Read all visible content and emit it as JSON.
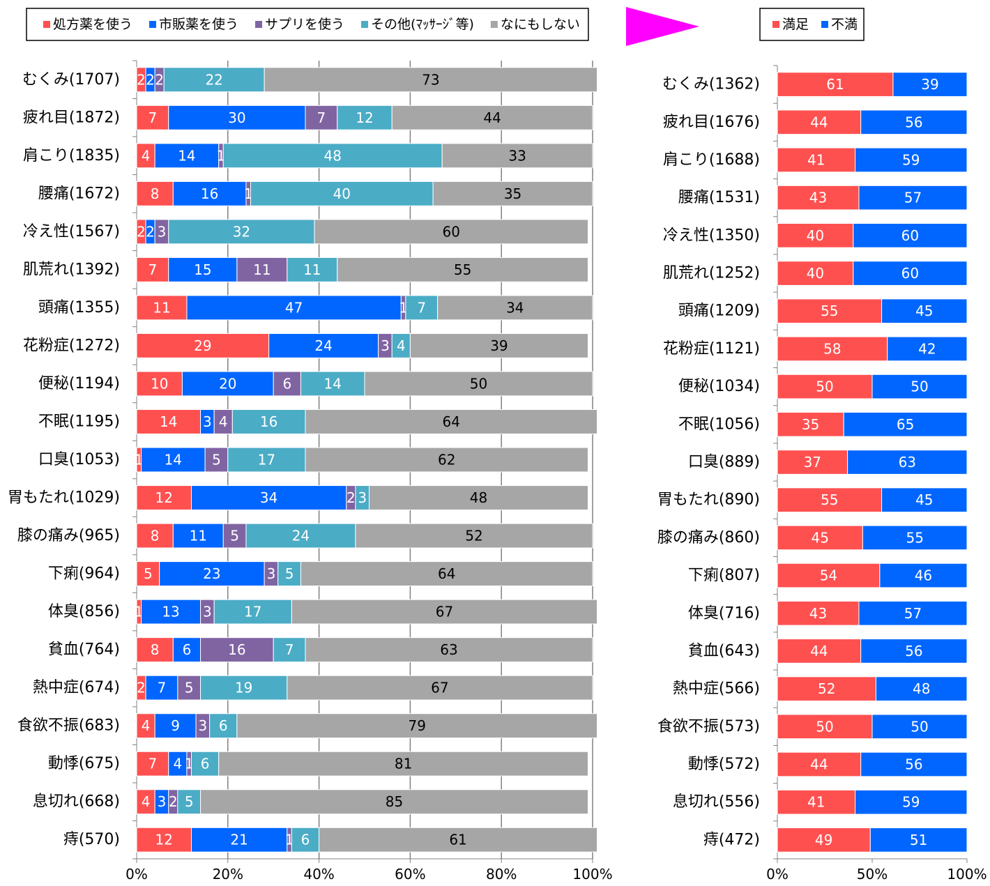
{
  "chart_data": [
    {
      "type": "bar",
      "orientation": "horizontal",
      "stacked": true,
      "categories": [
        "むくみ(1707)",
        "疲れ目(1872)",
        "肩こり(1835)",
        "腰痛(1672)",
        "冷え性(1567)",
        "肌荒れ(1392)",
        "頭痛(1355)",
        "花粉症(1272)",
        "便秘(1194)",
        "不眠(1195)",
        "口臭(1053)",
        "胃もたれ(1029)",
        "膝の痛み(965)",
        "下痢(964)",
        "体臭(856)",
        "貧血(764)",
        "熱中症(674)",
        "食欲不振(683)",
        "動悸(675)",
        "息切れ(668)",
        "痔(570)"
      ],
      "series": [
        {
          "name": "処方薬を使う",
          "color": "#ff5050",
          "values": [
            2,
            7,
            4,
            8,
            2,
            7,
            11,
            29,
            10,
            14,
            1,
            12,
            8,
            5,
            1,
            8,
            2,
            4,
            7,
            4,
            12
          ]
        },
        {
          "name": "市販薬を使う",
          "color": "#0066ff",
          "values": [
            2,
            30,
            14,
            16,
            2,
            15,
            47,
            24,
            20,
            3,
            14,
            34,
            11,
            23,
            13,
            6,
            7,
            9,
            4,
            3,
            21
          ]
        },
        {
          "name": "サプリを使う",
          "color": "#8064a2",
          "values": [
            2,
            7,
            1,
            1,
            3,
            11,
            1,
            3,
            6,
            4,
            5,
            2,
            5,
            3,
            3,
            16,
            5,
            3,
            1,
            2,
            1
          ]
        },
        {
          "name": "その他(ﾏｯｻｰｼﾞ等)",
          "color": "#4bacc6",
          "values": [
            22,
            12,
            48,
            40,
            32,
            11,
            7,
            4,
            14,
            16,
            17,
            3,
            24,
            5,
            17,
            7,
            19,
            6,
            6,
            5,
            6
          ]
        },
        {
          "name": "なにもしない",
          "color": "#a6a6a6",
          "values": [
            73,
            44,
            33,
            35,
            60,
            55,
            34,
            39,
            50,
            64,
            62,
            48,
            52,
            64,
            67,
            63,
            67,
            79,
            81,
            85,
            61
          ]
        }
      ],
      "xlim": [
        0,
        100
      ],
      "xticks": [
        {
          "value": 0,
          "label": "0%"
        },
        {
          "value": 20,
          "label": "20%"
        },
        {
          "value": 40,
          "label": "40%"
        },
        {
          "value": 60,
          "label": "60%"
        },
        {
          "value": 80,
          "label": "80%"
        },
        {
          "value": 100,
          "label": "100%"
        }
      ],
      "grid": true,
      "legend": "top"
    },
    {
      "type": "bar",
      "orientation": "horizontal",
      "stacked": true,
      "categories": [
        "むくみ(1362)",
        "疲れ目(1676)",
        "肩こり(1688)",
        "腰痛(1531)",
        "冷え性(1350)",
        "肌荒れ(1252)",
        "頭痛(1209)",
        "花粉症(1121)",
        "便秘(1034)",
        "不眠(1056)",
        "口臭(889)",
        "胃もたれ(890)",
        "膝の痛み(860)",
        "下痢(807)",
        "体臭(716)",
        "貧血(643)",
        "熱中症(566)",
        "食欲不振(573)",
        "動悸(572)",
        "息切れ(556)",
        "痔(472)"
      ],
      "series": [
        {
          "name": "満足",
          "color": "#ff5050",
          "values": [
            61,
            44,
            41,
            43,
            40,
            40,
            55,
            58,
            50,
            35,
            37,
            55,
            45,
            54,
            43,
            44,
            52,
            50,
            44,
            41,
            49
          ]
        },
        {
          "name": "不満",
          "color": "#0066ff",
          "values": [
            39,
            56,
            59,
            57,
            60,
            60,
            45,
            42,
            50,
            65,
            63,
            45,
            55,
            46,
            57,
            56,
            48,
            50,
            56,
            59,
            51
          ]
        }
      ],
      "xlim": [
        0,
        100
      ],
      "xticks": [
        {
          "value": 0,
          "label": "0%"
        },
        {
          "value": 50,
          "label": "50%"
        },
        {
          "value": 100,
          "label": "100%"
        }
      ],
      "grid": false,
      "legend": "top"
    }
  ]
}
